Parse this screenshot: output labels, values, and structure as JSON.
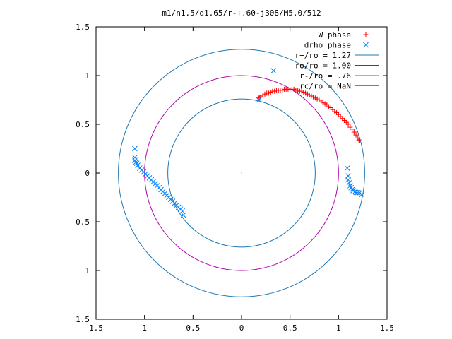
{
  "chart_data": {
    "type": "scatter",
    "title": "m1/n1.5/q1.65/r-+.60-j308/M5.0/512",
    "xlabel": "",
    "ylabel": "",
    "xlim": [
      -1.5,
      1.5
    ],
    "ylim": [
      -1.5,
      1.5
    ],
    "x_ticks": [
      -1.5,
      -1,
      -0.5,
      0,
      0.5,
      1,
      1.5
    ],
    "x_tick_labels": [
      "1.5",
      "1",
      "0.5",
      "0",
      "0.5",
      "1",
      "1.5"
    ],
    "y_ticks": [
      1.5,
      1,
      0.5,
      0,
      -0.5,
      -1,
      -1.5
    ],
    "y_tick_labels": [
      "1.5",
      "1",
      "0.5",
      "0",
      "0.5",
      "1",
      "1.5"
    ],
    "grid": false,
    "legend_position": "top-right",
    "series": [
      {
        "name": "W phase",
        "kind": "points",
        "marker": "plus",
        "color": "#ff0000",
        "points": [
          [
            0.17,
            0.75
          ],
          [
            0.18,
            0.77
          ],
          [
            0.19,
            0.78
          ],
          [
            0.2,
            0.79
          ],
          [
            0.22,
            0.8
          ],
          [
            0.24,
            0.81
          ],
          [
            0.26,
            0.82
          ],
          [
            0.28,
            0.82
          ],
          [
            0.3,
            0.83
          ],
          [
            0.32,
            0.84
          ],
          [
            0.34,
            0.84
          ],
          [
            0.36,
            0.85
          ],
          [
            0.38,
            0.85
          ],
          [
            0.4,
            0.85
          ],
          [
            0.42,
            0.85
          ],
          [
            0.44,
            0.86
          ],
          [
            0.46,
            0.86
          ],
          [
            0.48,
            0.86
          ],
          [
            0.5,
            0.86
          ],
          [
            0.52,
            0.86
          ],
          [
            0.54,
            0.86
          ],
          [
            0.56,
            0.85
          ],
          [
            0.58,
            0.85
          ],
          [
            0.6,
            0.84
          ],
          [
            0.62,
            0.84
          ],
          [
            0.64,
            0.83
          ],
          [
            0.66,
            0.82
          ],
          [
            0.68,
            0.81
          ],
          [
            0.7,
            0.8
          ],
          [
            0.72,
            0.79
          ],
          [
            0.74,
            0.78
          ],
          [
            0.76,
            0.77
          ],
          [
            0.78,
            0.76
          ],
          [
            0.8,
            0.75
          ],
          [
            0.82,
            0.74
          ],
          [
            0.84,
            0.72
          ],
          [
            0.86,
            0.71
          ],
          [
            0.88,
            0.7
          ],
          [
            0.9,
            0.68
          ],
          [
            0.92,
            0.67
          ],
          [
            0.94,
            0.65
          ],
          [
            0.96,
            0.63
          ],
          [
            0.98,
            0.62
          ],
          [
            1.0,
            0.6
          ],
          [
            1.02,
            0.58
          ],
          [
            1.04,
            0.56
          ],
          [
            1.06,
            0.54
          ],
          [
            1.08,
            0.52
          ],
          [
            1.1,
            0.5
          ],
          [
            1.12,
            0.47
          ],
          [
            1.14,
            0.45
          ],
          [
            1.16,
            0.42
          ],
          [
            1.18,
            0.39
          ],
          [
            1.2,
            0.36
          ],
          [
            1.21,
            0.34
          ],
          [
            1.22,
            0.33
          ]
        ]
      },
      {
        "name": "drho phase",
        "kind": "points",
        "marker": "cross",
        "color": "#0080ff",
        "points": [
          [
            0.33,
            1.05
          ],
          [
            0.18,
            0.75
          ],
          [
            -1.1,
            0.25
          ],
          [
            -1.1,
            0.16
          ],
          [
            -1.1,
            0.13
          ],
          [
            -1.09,
            0.11
          ],
          [
            -1.08,
            0.1
          ],
          [
            -1.07,
            0.08
          ],
          [
            -1.05,
            0.05
          ],
          [
            -1.03,
            0.03
          ],
          [
            -1.01,
            0.01
          ],
          [
            -0.99,
            -0.01
          ],
          [
            -0.97,
            -0.03
          ],
          [
            -0.95,
            -0.05
          ],
          [
            -0.93,
            -0.07
          ],
          [
            -0.91,
            -0.09
          ],
          [
            -0.89,
            -0.11
          ],
          [
            -0.87,
            -0.13
          ],
          [
            -0.85,
            -0.15
          ],
          [
            -0.83,
            -0.17
          ],
          [
            -0.81,
            -0.19
          ],
          [
            -0.79,
            -0.21
          ],
          [
            -0.77,
            -0.23
          ],
          [
            -0.75,
            -0.25
          ],
          [
            -0.73,
            -0.27
          ],
          [
            -0.71,
            -0.29
          ],
          [
            -0.69,
            -0.31
          ],
          [
            -0.67,
            -0.33
          ],
          [
            -0.65,
            -0.35
          ],
          [
            -0.63,
            -0.37
          ],
          [
            -0.61,
            -0.39
          ],
          [
            -0.6,
            -0.43
          ],
          [
            1.09,
            0.05
          ],
          [
            1.1,
            -0.03
          ],
          [
            1.1,
            -0.07
          ],
          [
            1.11,
            -0.1
          ],
          [
            1.12,
            -0.13
          ],
          [
            1.13,
            -0.15
          ],
          [
            1.14,
            -0.17
          ],
          [
            1.15,
            -0.18
          ],
          [
            1.17,
            -0.19
          ],
          [
            1.18,
            -0.2
          ],
          [
            1.2,
            -0.2
          ],
          [
            1.22,
            -0.2
          ],
          [
            1.24,
            -0.22
          ]
        ]
      },
      {
        "name": "r+/ro = 1.27",
        "kind": "circle",
        "radius": 1.27,
        "color": "#1f77b4"
      },
      {
        "name": "ro/ro = 1.00",
        "kind": "circle",
        "radius": 1.0,
        "color": "#b000b0"
      },
      {
        "name": "r-/ro = .76",
        "kind": "circle",
        "radius": 0.76,
        "color": "#1f77b4"
      },
      {
        "name": "rc/ro = NaN",
        "kind": "circle",
        "radius": null,
        "color": "#00b0c0"
      }
    ]
  }
}
